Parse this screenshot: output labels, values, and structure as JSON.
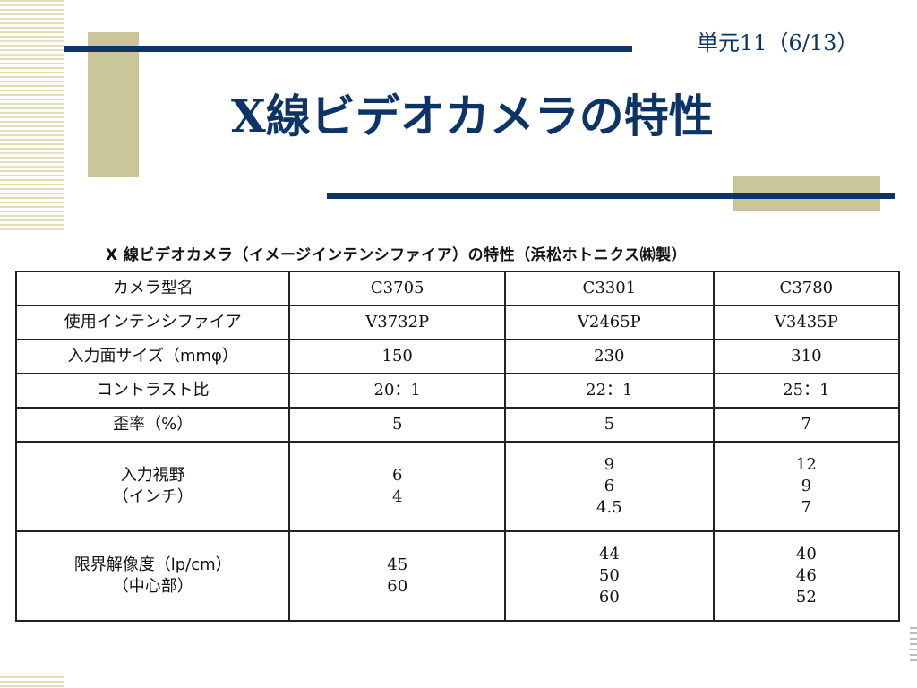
{
  "slide": {
    "unit_label": "単元11（6/13）",
    "title": "X線ビデオカメラの特性"
  },
  "table": {
    "caption": "X 線ビデオカメラ（イメージインテンシファイア）の特性（浜松ホトニクス㈱製）",
    "header": {
      "label": "カメラ型名",
      "columns": [
        "C3705",
        "C3301",
        "C3780"
      ]
    },
    "rows": [
      {
        "label": "使用インテンシファイア",
        "values": [
          "V3732P",
          "V2465P",
          "V3435P"
        ]
      },
      {
        "label": "入力面サイズ（mmφ）",
        "values": [
          "150",
          "230",
          "310"
        ]
      },
      {
        "label": "コントラスト比",
        "values": [
          "20：1",
          "22：1",
          "25：1"
        ]
      },
      {
        "label": "歪率（%）",
        "values": [
          "5",
          "5",
          "7"
        ]
      }
    ],
    "fov": {
      "label_line1": "入力視野",
      "label_line2": "（インチ）",
      "values": [
        [
          "6",
          "4"
        ],
        [
          "9",
          "6",
          "4.5"
        ],
        [
          "12",
          "9",
          "7"
        ]
      ]
    },
    "resolution": {
      "label_line1": "限界解像度（lp/cm）",
      "label_line2": "（中心部）",
      "values": [
        [
          "45",
          "60"
        ],
        [
          "44",
          "50",
          "60"
        ],
        [
          "40",
          "46",
          "52"
        ]
      ]
    }
  }
}
